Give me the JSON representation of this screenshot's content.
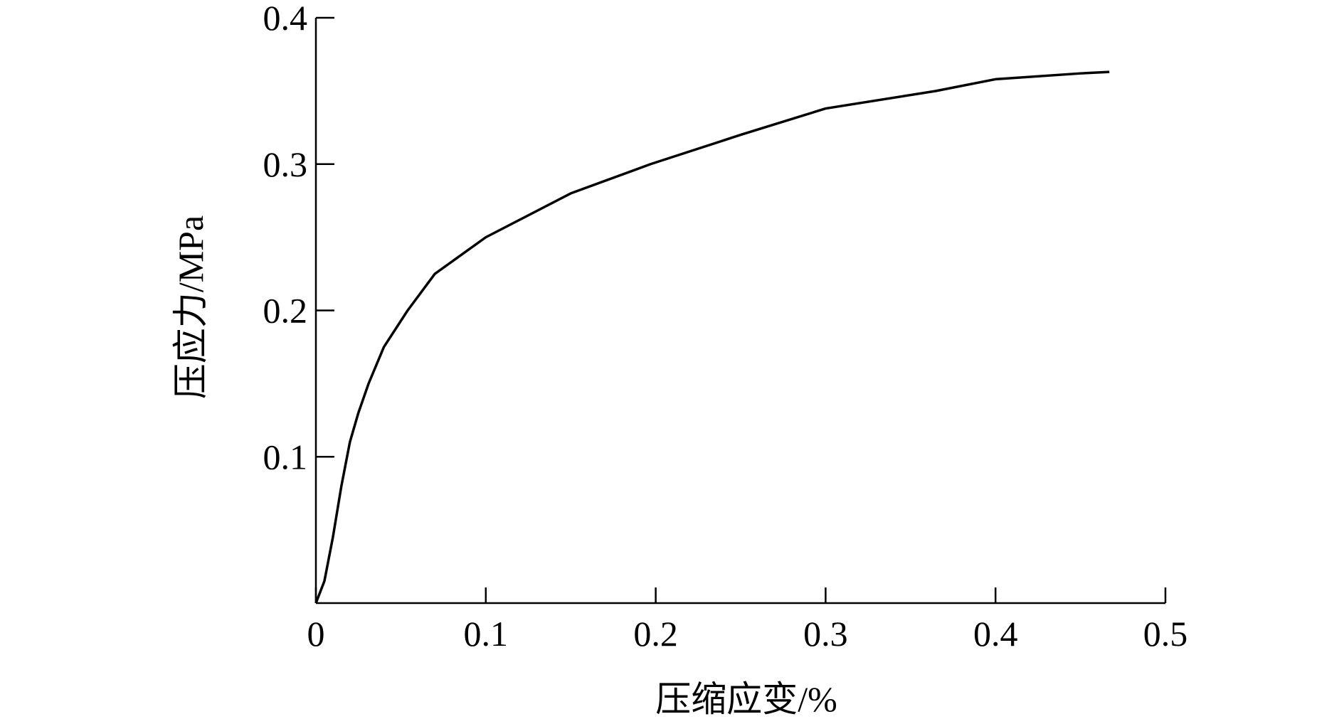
{
  "chart_data": {
    "type": "line",
    "x_label": "压缩应变/%",
    "y_label": "压应力/MPa",
    "xlim": [
      0,
      0.5
    ],
    "ylim": [
      0,
      0.4
    ],
    "xticks": [
      0,
      0.1,
      0.2,
      0.3,
      0.4,
      0.5
    ],
    "yticks": [
      0.1,
      0.2,
      0.3,
      0.4
    ],
    "x": [
      0,
      0.005,
      0.01,
      0.015,
      0.02,
      0.025,
      0.031,
      0.04,
      0.054,
      0.07,
      0.1,
      0.15,
      0.197,
      0.25,
      0.3,
      0.365,
      0.4,
      0.45,
      0.467
    ],
    "series": [
      {
        "color": "#000000",
        "values": [
          0,
          0.015,
          0.045,
          0.08,
          0.11,
          0.13,
          0.15,
          0.175,
          0.2,
          0.225,
          0.25,
          0.28,
          0.3,
          0.32,
          0.338,
          0.35,
          0.358,
          0.362,
          0.363
        ]
      }
    ]
  }
}
